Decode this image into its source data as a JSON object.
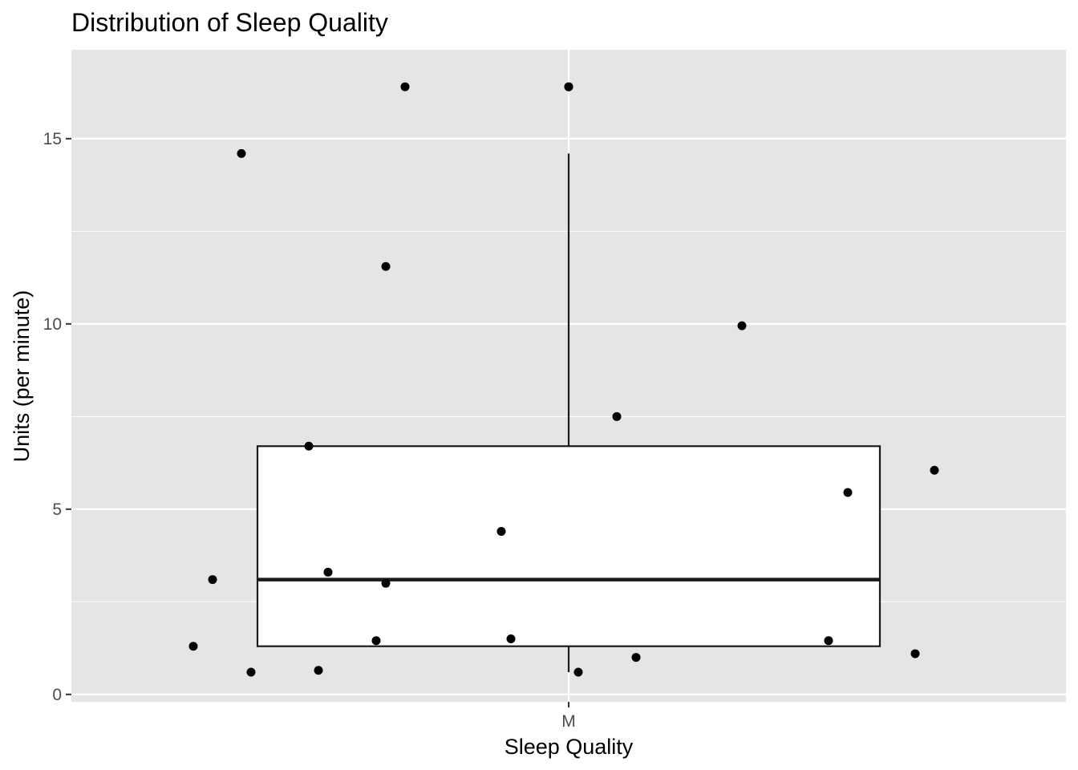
{
  "chart_data": {
    "type": "boxplot",
    "title": "Distribution of Sleep Quality",
    "xlabel": "Sleep Quality",
    "ylabel": "Units (per minute)",
    "categories": [
      "M"
    ],
    "ylim": [
      -0.2,
      17.4
    ],
    "yticks": [
      0,
      5,
      10,
      15
    ],
    "grid": true,
    "legend": "none",
    "box": {
      "category": "M",
      "q1": 1.3,
      "median": 3.1,
      "q3": 6.7,
      "whisker_low": 0.6,
      "whisker_high": 14.6,
      "outliers": [
        16.4
      ]
    },
    "points": [
      {
        "x_jitter": -0.37,
        "y": 3.1
      },
      {
        "x_jitter": -0.39,
        "y": 1.3
      },
      {
        "x_jitter": -0.33,
        "y": 0.6
      },
      {
        "x_jitter": -0.26,
        "y": 0.65
      },
      {
        "x_jitter": -0.34,
        "y": 14.6
      },
      {
        "x_jitter": -0.27,
        "y": 6.7
      },
      {
        "x_jitter": -0.25,
        "y": 3.3
      },
      {
        "x_jitter": -0.2,
        "y": 1.45
      },
      {
        "x_jitter": -0.19,
        "y": 3.0
      },
      {
        "x_jitter": -0.19,
        "y": 11.55
      },
      {
        "x_jitter": -0.17,
        "y": 16.4
      },
      {
        "x_jitter": -0.07,
        "y": 4.4
      },
      {
        "x_jitter": -0.06,
        "y": 1.5
      },
      {
        "x_jitter": 0.0,
        "y": 16.4
      },
      {
        "x_jitter": 0.01,
        "y": 0.6
      },
      {
        "x_jitter": 0.05,
        "y": 7.5
      },
      {
        "x_jitter": 0.07,
        "y": 1.0
      },
      {
        "x_jitter": 0.18,
        "y": 9.95
      },
      {
        "x_jitter": 0.27,
        "y": 1.45
      },
      {
        "x_jitter": 0.29,
        "y": 5.45
      },
      {
        "x_jitter": 0.36,
        "y": 1.1
      },
      {
        "x_jitter": 0.38,
        "y": 6.05
      }
    ],
    "colors": {
      "panel": "#e5e5e5",
      "grid": "#ffffff",
      "box_fill": "#ffffff",
      "box_stroke": "#1a1a1a",
      "point": "#000000",
      "tick_label": "#4d4d4d"
    }
  }
}
